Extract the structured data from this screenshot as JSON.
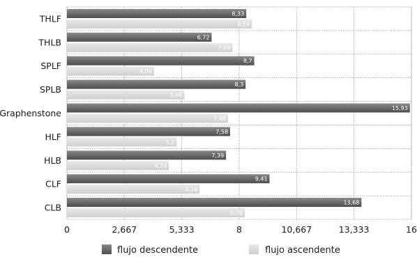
{
  "chart_data": {
    "type": "bar",
    "orientation": "horizontal",
    "categories": [
      "THLF",
      "THLB",
      "SPLF",
      "SPLB",
      "Graphenstone",
      "HLF",
      "HLB",
      "CLF",
      "CLB"
    ],
    "series": [
      {
        "name": "flujo descendente",
        "values": [
          8.33,
          6.72,
          8.7,
          8.3,
          15.93,
          7.58,
          7.39,
          9.41,
          13.68
        ],
        "labels": [
          "8,33",
          "6,72",
          "8,7",
          "8,3",
          "15,93",
          "7,58",
          "7,39",
          "9,41",
          "13,68"
        ],
        "color": "#6b6b6b"
      },
      {
        "name": "flujo ascendente",
        "values": [
          8.59,
          7.69,
          4.04,
          5.46,
          7.48,
          5.1,
          4.74,
          6.16,
          8.26
        ],
        "labels": [
          "8,59",
          "7,69",
          "4,04",
          "5,46",
          "7,48",
          "5,1",
          "4,74",
          "6,16",
          "8,26"
        ],
        "color": "#dcdcdc"
      }
    ],
    "xlim": [
      0,
      16
    ],
    "xticks": [
      0,
      2.667,
      5.333,
      8,
      10.667,
      13.333,
      16
    ],
    "xtick_labels": [
      "0",
      "2,667",
      "5,333",
      "8",
      "10,667",
      "13,333",
      "16"
    ],
    "grid": true,
    "legend_position": "bottom",
    "title": "",
    "xlabel": "",
    "ylabel": ""
  }
}
